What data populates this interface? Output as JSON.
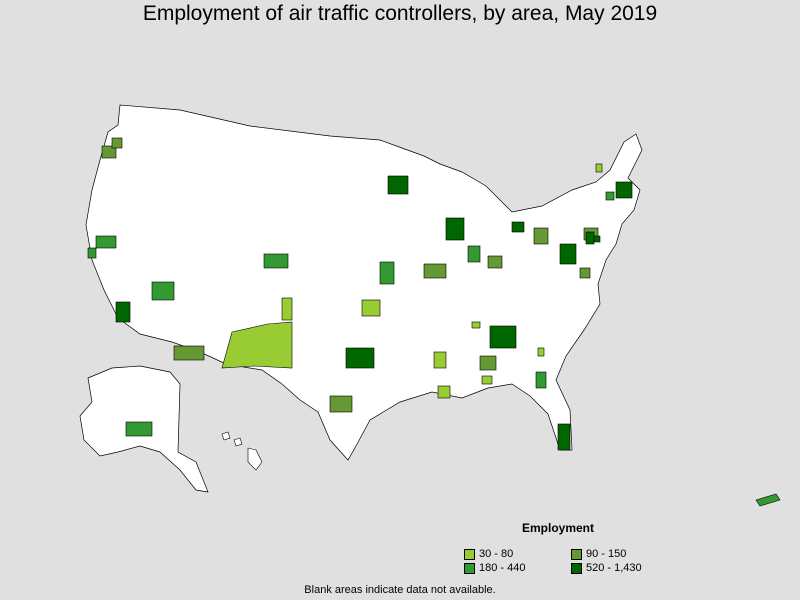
{
  "title": "Employment of air traffic controllers, by area, May 2019",
  "legend": {
    "title": "Employment",
    "items": [
      {
        "label": "30 - 80",
        "color": "#99cc33"
      },
      {
        "label": "90 - 150",
        "color": "#669933"
      },
      {
        "label": "180 - 440",
        "color": "#339933"
      },
      {
        "label": "520 - 1,430",
        "color": "#006600"
      }
    ]
  },
  "note": "Blank areas indicate data not available.",
  "colors": {
    "background": "#e0e0e0",
    "land": "#ffffff",
    "border": "#000000"
  }
}
